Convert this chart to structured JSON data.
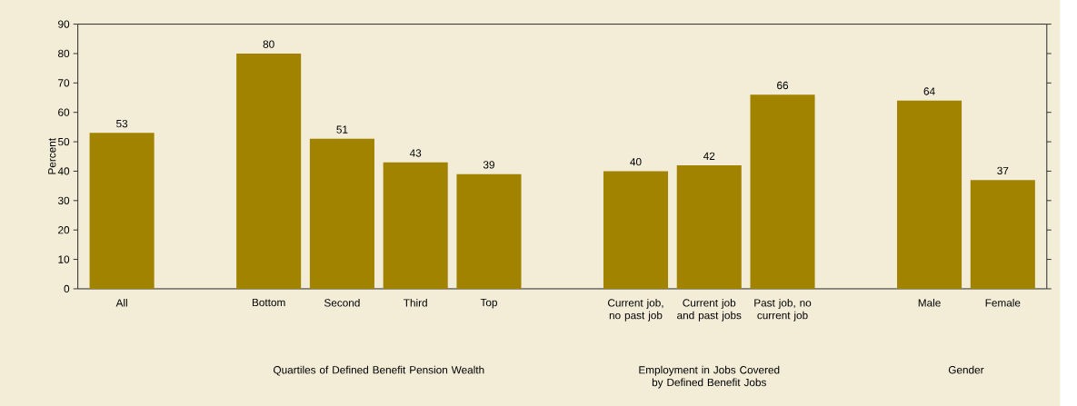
{
  "chart_data": {
    "type": "bar",
    "ylabel": "Percent",
    "categories": [
      "All",
      null,
      "Bottom",
      "Second",
      "Third",
      "Top",
      null,
      "Current job, no past job",
      "Current job and past jobs",
      "Past job, no current job",
      null,
      "Male",
      "Female"
    ],
    "values": [
      53,
      null,
      80,
      51,
      43,
      39,
      null,
      40,
      42,
      66,
      null,
      64,
      37
    ],
    "color": "#a28300",
    "ylim": [
      0,
      90
    ],
    "yticks": [
      0,
      10,
      20,
      30,
      40,
      50,
      60,
      70,
      80,
      90
    ],
    "data_labels": true,
    "annotations": [
      "Quartiles of Defined Benefit Pension Wealth",
      "Employment in Jobs Covered by Defined Benefit Jobs",
      "Gender"
    ]
  }
}
